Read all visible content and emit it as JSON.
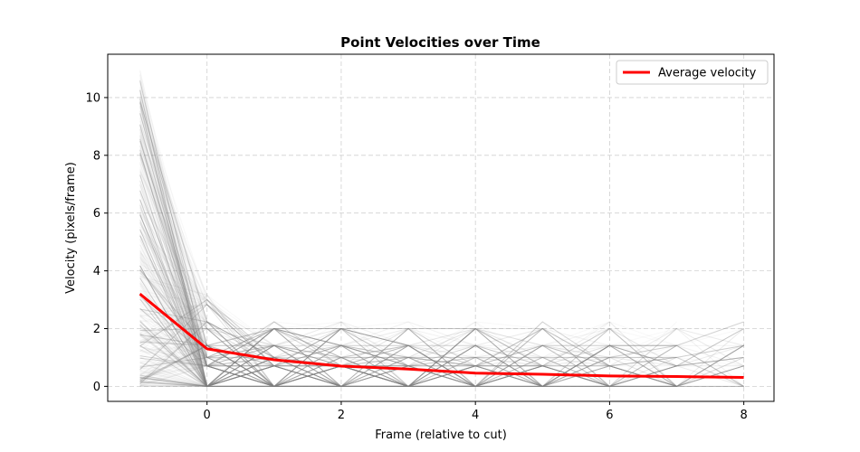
{
  "chart_data": {
    "type": "line",
    "title": "Point Velocities over Time",
    "xlabel": "Frame (relative to cut)",
    "ylabel": "Velocity (pixels/frame)",
    "xlim": [
      -1.48,
      8.45
    ],
    "ylim": [
      -0.52,
      11.5
    ],
    "xticks": [
      0,
      2,
      4,
      6,
      8
    ],
    "yticks": [
      0,
      2,
      4,
      6,
      8,
      10
    ],
    "grid": true,
    "legend_position": "top-right",
    "series": [
      {
        "name": "Average velocity",
        "color": "#ff0000",
        "x": [
          -1,
          0,
          1,
          2,
          3,
          4,
          5,
          6,
          7,
          8
        ],
        "values": [
          3.2,
          1.3,
          0.92,
          0.7,
          0.6,
          0.46,
          0.42,
          0.36,
          0.34,
          0.31
        ]
      }
    ],
    "background_traces": {
      "description_color": "#808080",
      "count_visible_approx": 400,
      "x": [
        -1,
        0,
        1,
        2,
        3,
        4,
        5,
        6,
        7,
        8
      ]
    }
  }
}
